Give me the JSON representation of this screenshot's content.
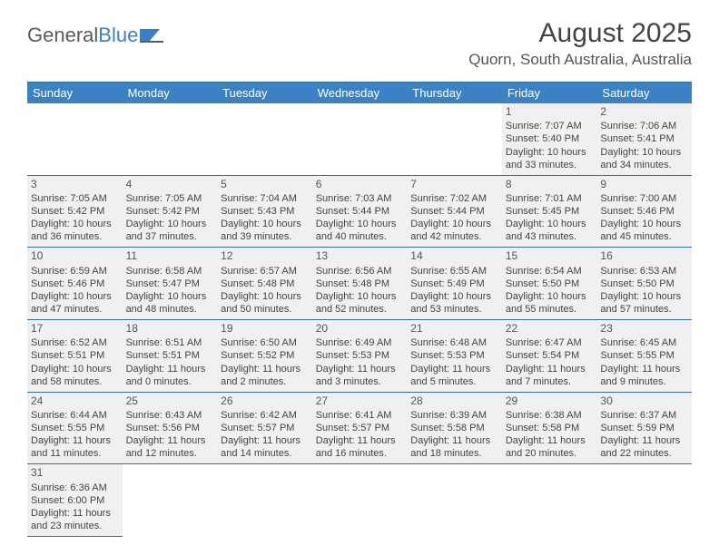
{
  "brand": {
    "part1": "General",
    "part2": "Blue"
  },
  "title": "August 2025",
  "location": "Quorn, South Australia, Australia",
  "colors": {
    "header_bg": "#3b82c4",
    "rule": "#2f6fb0",
    "cell_bg": "#f0f0f0",
    "text": "#444444"
  },
  "dayNames": [
    "Sunday",
    "Monday",
    "Tuesday",
    "Wednesday",
    "Thursday",
    "Friday",
    "Saturday"
  ],
  "weeks": [
    [
      null,
      null,
      null,
      null,
      null,
      {
        "n": "1",
        "sunrise": "7:07 AM",
        "sunset": "5:40 PM",
        "dl1": "10 hours",
        "dl2": "and 33 minutes."
      },
      {
        "n": "2",
        "sunrise": "7:06 AM",
        "sunset": "5:41 PM",
        "dl1": "10 hours",
        "dl2": "and 34 minutes."
      }
    ],
    [
      {
        "n": "3",
        "sunrise": "7:05 AM",
        "sunset": "5:42 PM",
        "dl1": "10 hours",
        "dl2": "and 36 minutes."
      },
      {
        "n": "4",
        "sunrise": "7:05 AM",
        "sunset": "5:42 PM",
        "dl1": "10 hours",
        "dl2": "and 37 minutes."
      },
      {
        "n": "5",
        "sunrise": "7:04 AM",
        "sunset": "5:43 PM",
        "dl1": "10 hours",
        "dl2": "and 39 minutes."
      },
      {
        "n": "6",
        "sunrise": "7:03 AM",
        "sunset": "5:44 PM",
        "dl1": "10 hours",
        "dl2": "and 40 minutes."
      },
      {
        "n": "7",
        "sunrise": "7:02 AM",
        "sunset": "5:44 PM",
        "dl1": "10 hours",
        "dl2": "and 42 minutes."
      },
      {
        "n": "8",
        "sunrise": "7:01 AM",
        "sunset": "5:45 PM",
        "dl1": "10 hours",
        "dl2": "and 43 minutes."
      },
      {
        "n": "9",
        "sunrise": "7:00 AM",
        "sunset": "5:46 PM",
        "dl1": "10 hours",
        "dl2": "and 45 minutes."
      }
    ],
    [
      {
        "n": "10",
        "sunrise": "6:59 AM",
        "sunset": "5:46 PM",
        "dl1": "10 hours",
        "dl2": "and 47 minutes."
      },
      {
        "n": "11",
        "sunrise": "6:58 AM",
        "sunset": "5:47 PM",
        "dl1": "10 hours",
        "dl2": "and 48 minutes."
      },
      {
        "n": "12",
        "sunrise": "6:57 AM",
        "sunset": "5:48 PM",
        "dl1": "10 hours",
        "dl2": "and 50 minutes."
      },
      {
        "n": "13",
        "sunrise": "6:56 AM",
        "sunset": "5:48 PM",
        "dl1": "10 hours",
        "dl2": "and 52 minutes."
      },
      {
        "n": "14",
        "sunrise": "6:55 AM",
        "sunset": "5:49 PM",
        "dl1": "10 hours",
        "dl2": "and 53 minutes."
      },
      {
        "n": "15",
        "sunrise": "6:54 AM",
        "sunset": "5:50 PM",
        "dl1": "10 hours",
        "dl2": "and 55 minutes."
      },
      {
        "n": "16",
        "sunrise": "6:53 AM",
        "sunset": "5:50 PM",
        "dl1": "10 hours",
        "dl2": "and 57 minutes."
      }
    ],
    [
      {
        "n": "17",
        "sunrise": "6:52 AM",
        "sunset": "5:51 PM",
        "dl1": "10 hours",
        "dl2": "and 58 minutes."
      },
      {
        "n": "18",
        "sunrise": "6:51 AM",
        "sunset": "5:51 PM",
        "dl1": "11 hours",
        "dl2": "and 0 minutes."
      },
      {
        "n": "19",
        "sunrise": "6:50 AM",
        "sunset": "5:52 PM",
        "dl1": "11 hours",
        "dl2": "and 2 minutes."
      },
      {
        "n": "20",
        "sunrise": "6:49 AM",
        "sunset": "5:53 PM",
        "dl1": "11 hours",
        "dl2": "and 3 minutes."
      },
      {
        "n": "21",
        "sunrise": "6:48 AM",
        "sunset": "5:53 PM",
        "dl1": "11 hours",
        "dl2": "and 5 minutes."
      },
      {
        "n": "22",
        "sunrise": "6:47 AM",
        "sunset": "5:54 PM",
        "dl1": "11 hours",
        "dl2": "and 7 minutes."
      },
      {
        "n": "23",
        "sunrise": "6:45 AM",
        "sunset": "5:55 PM",
        "dl1": "11 hours",
        "dl2": "and 9 minutes."
      }
    ],
    [
      {
        "n": "24",
        "sunrise": "6:44 AM",
        "sunset": "5:55 PM",
        "dl1": "11 hours",
        "dl2": "and 11 minutes."
      },
      {
        "n": "25",
        "sunrise": "6:43 AM",
        "sunset": "5:56 PM",
        "dl1": "11 hours",
        "dl2": "and 12 minutes."
      },
      {
        "n": "26",
        "sunrise": "6:42 AM",
        "sunset": "5:57 PM",
        "dl1": "11 hours",
        "dl2": "and 14 minutes."
      },
      {
        "n": "27",
        "sunrise": "6:41 AM",
        "sunset": "5:57 PM",
        "dl1": "11 hours",
        "dl2": "and 16 minutes."
      },
      {
        "n": "28",
        "sunrise": "6:39 AM",
        "sunset": "5:58 PM",
        "dl1": "11 hours",
        "dl2": "and 18 minutes."
      },
      {
        "n": "29",
        "sunrise": "6:38 AM",
        "sunset": "5:58 PM",
        "dl1": "11 hours",
        "dl2": "and 20 minutes."
      },
      {
        "n": "30",
        "sunrise": "6:37 AM",
        "sunset": "5:59 PM",
        "dl1": "11 hours",
        "dl2": "and 22 minutes."
      }
    ],
    [
      {
        "n": "31",
        "sunrise": "6:36 AM",
        "sunset": "6:00 PM",
        "dl1": "11 hours",
        "dl2": "and 23 minutes."
      },
      null,
      null,
      null,
      null,
      null,
      null
    ]
  ],
  "labels": {
    "sunrise": "Sunrise: ",
    "sunset": "Sunset: ",
    "daylight": "Daylight: "
  }
}
